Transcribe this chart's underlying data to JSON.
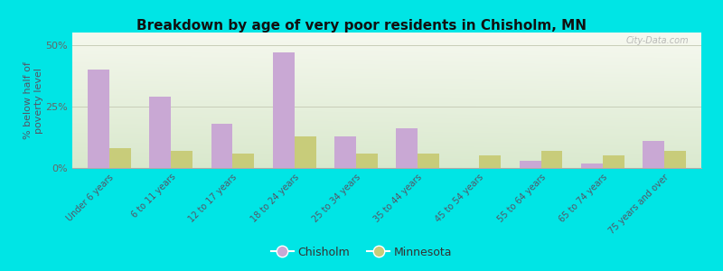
{
  "title": "Breakdown by age of very poor residents in Chisholm, MN",
  "categories": [
    "Under 6 years",
    "6 to 11 years",
    "12 to 17 years",
    "18 to 24 years",
    "25 to 34 years",
    "35 to 44 years",
    "45 to 54 years",
    "55 to 64 years",
    "65 to 74 years",
    "75 years and over"
  ],
  "chisholm_values": [
    40,
    29,
    18,
    47,
    13,
    16,
    0,
    3,
    2,
    11
  ],
  "minnesota_values": [
    8,
    7,
    6,
    13,
    6,
    6,
    5,
    7,
    5,
    7
  ],
  "chisholm_color": "#c9a8d4",
  "minnesota_color": "#c8cc7a",
  "ylabel": "% below half of\npoverty level",
  "ylim": [
    0,
    55
  ],
  "yticks": [
    0,
    25,
    50
  ],
  "ytick_labels": [
    "0%",
    "25%",
    "50%"
  ],
  "background_outer": "#00e5e5",
  "background_inner": "#e8f0e0",
  "grid_color": "#c8cdb8",
  "watermark": "City-Data.com",
  "bar_width": 0.35,
  "legend_label_chisholm": "Chisholm",
  "legend_label_minnesota": "Minnesota"
}
